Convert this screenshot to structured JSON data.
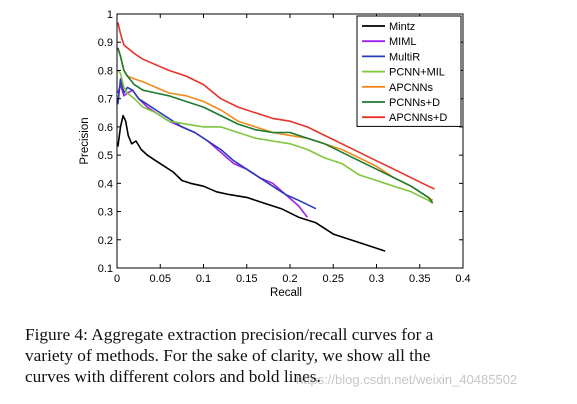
{
  "figure": {
    "caption_lines": [
      "Figure 4: Aggregate extraction precision/recall curves for a",
      "variety of methods. For the sake of clarity, we show all the",
      "curves with different colors and bold lines."
    ],
    "watermark": "https://blog.csdn.net/weixin_40485502"
  },
  "chart_data": {
    "type": "line",
    "title": "",
    "xlabel": "Recall",
    "ylabel": "Precision",
    "xlim": [
      0,
      0.4
    ],
    "ylim": [
      0.1,
      1
    ],
    "xticks": [
      "0",
      "0.05",
      "0.1",
      "0.15",
      "0.2",
      "0.25",
      "0.3",
      "0.35",
      "0.4"
    ],
    "yticks": [
      "0.1",
      "0.2",
      "0.3",
      "0.4",
      "0.5",
      "0.6",
      "0.7",
      "0.8",
      "0.9",
      "1"
    ],
    "grid": false,
    "legend_position": "top-right",
    "series": [
      {
        "name": "Mintz",
        "color": "#000000",
        "x": [
          0.001,
          0.004,
          0.007,
          0.01,
          0.013,
          0.017,
          0.022,
          0.028,
          0.035,
          0.045,
          0.055,
          0.065,
          0.075,
          0.085,
          0.1,
          0.115,
          0.13,
          0.15,
          0.17,
          0.19,
          0.21,
          0.23,
          0.25,
          0.27,
          0.29,
          0.31
        ],
        "y": [
          0.53,
          0.6,
          0.64,
          0.62,
          0.57,
          0.54,
          0.55,
          0.52,
          0.5,
          0.48,
          0.46,
          0.44,
          0.41,
          0.4,
          0.39,
          0.37,
          0.36,
          0.35,
          0.33,
          0.31,
          0.28,
          0.26,
          0.22,
          0.2,
          0.18,
          0.16
        ]
      },
      {
        "name": "MIML",
        "color": "#a020f0",
        "x": [
          0.001,
          0.004,
          0.008,
          0.012,
          0.018,
          0.025,
          0.035,
          0.045,
          0.06,
          0.075,
          0.09,
          0.105,
          0.12,
          0.135,
          0.15,
          0.165,
          0.18,
          0.195,
          0.21,
          0.22
        ],
        "y": [
          0.72,
          0.75,
          0.71,
          0.72,
          0.73,
          0.7,
          0.67,
          0.65,
          0.62,
          0.6,
          0.58,
          0.55,
          0.51,
          0.47,
          0.45,
          0.42,
          0.4,
          0.36,
          0.32,
          0.28
        ]
      },
      {
        "name": "MultiR",
        "color": "#2a3cb5",
        "x": [
          0.001,
          0.004,
          0.008,
          0.012,
          0.018,
          0.025,
          0.035,
          0.045,
          0.06,
          0.075,
          0.09,
          0.105,
          0.12,
          0.135,
          0.15,
          0.165,
          0.18,
          0.195,
          0.21,
          0.23
        ],
        "y": [
          0.68,
          0.77,
          0.72,
          0.74,
          0.73,
          0.7,
          0.68,
          0.66,
          0.63,
          0.6,
          0.58,
          0.55,
          0.52,
          0.48,
          0.45,
          0.42,
          0.39,
          0.36,
          0.34,
          0.31
        ]
      },
      {
        "name": "PCNN+MIL",
        "color": "#7fc63b",
        "x": [
          0.001,
          0.004,
          0.008,
          0.012,
          0.02,
          0.03,
          0.045,
          0.06,
          0.08,
          0.1,
          0.12,
          0.14,
          0.16,
          0.18,
          0.2,
          0.22,
          0.24,
          0.26,
          0.28,
          0.3,
          0.32,
          0.34,
          0.36,
          0.365
        ],
        "y": [
          0.8,
          0.79,
          0.74,
          0.72,
          0.7,
          0.67,
          0.65,
          0.62,
          0.61,
          0.6,
          0.6,
          0.58,
          0.56,
          0.55,
          0.54,
          0.52,
          0.49,
          0.47,
          0.43,
          0.41,
          0.39,
          0.37,
          0.34,
          0.33
        ]
      },
      {
        "name": "APCNNs",
        "color": "#f08a1e",
        "x": [
          0.001,
          0.004,
          0.008,
          0.012,
          0.02,
          0.03,
          0.045,
          0.06,
          0.08,
          0.1,
          0.12,
          0.14,
          0.16,
          0.18,
          0.2,
          0.22,
          0.24,
          0.26,
          0.28,
          0.3,
          0.32,
          0.34,
          0.36,
          0.365
        ],
        "y": [
          0.88,
          0.85,
          0.8,
          0.78,
          0.77,
          0.76,
          0.74,
          0.72,
          0.71,
          0.69,
          0.66,
          0.62,
          0.6,
          0.58,
          0.57,
          0.56,
          0.54,
          0.52,
          0.49,
          0.46,
          0.42,
          0.39,
          0.35,
          0.34
        ]
      },
      {
        "name": "PCNNs+D",
        "color": "#1e7a2e",
        "x": [
          0.001,
          0.004,
          0.008,
          0.012,
          0.02,
          0.03,
          0.045,
          0.06,
          0.08,
          0.1,
          0.12,
          0.14,
          0.16,
          0.18,
          0.2,
          0.22,
          0.24,
          0.26,
          0.28,
          0.3,
          0.32,
          0.34,
          0.36,
          0.365
        ],
        "y": [
          0.88,
          0.85,
          0.8,
          0.78,
          0.75,
          0.73,
          0.72,
          0.71,
          0.69,
          0.67,
          0.64,
          0.61,
          0.59,
          0.58,
          0.58,
          0.56,
          0.54,
          0.51,
          0.48,
          0.45,
          0.42,
          0.39,
          0.35,
          0.33
        ]
      },
      {
        "name": "APCNNs+D",
        "color": "#e8322a",
        "x": [
          0.001,
          0.004,
          0.008,
          0.012,
          0.02,
          0.03,
          0.045,
          0.06,
          0.08,
          0.1,
          0.12,
          0.14,
          0.16,
          0.18,
          0.2,
          0.22,
          0.24,
          0.26,
          0.28,
          0.3,
          0.32,
          0.34,
          0.36,
          0.367
        ],
        "y": [
          0.97,
          0.93,
          0.89,
          0.88,
          0.86,
          0.84,
          0.82,
          0.8,
          0.78,
          0.75,
          0.7,
          0.67,
          0.65,
          0.63,
          0.62,
          0.6,
          0.57,
          0.54,
          0.51,
          0.48,
          0.45,
          0.42,
          0.39,
          0.38
        ]
      }
    ]
  }
}
